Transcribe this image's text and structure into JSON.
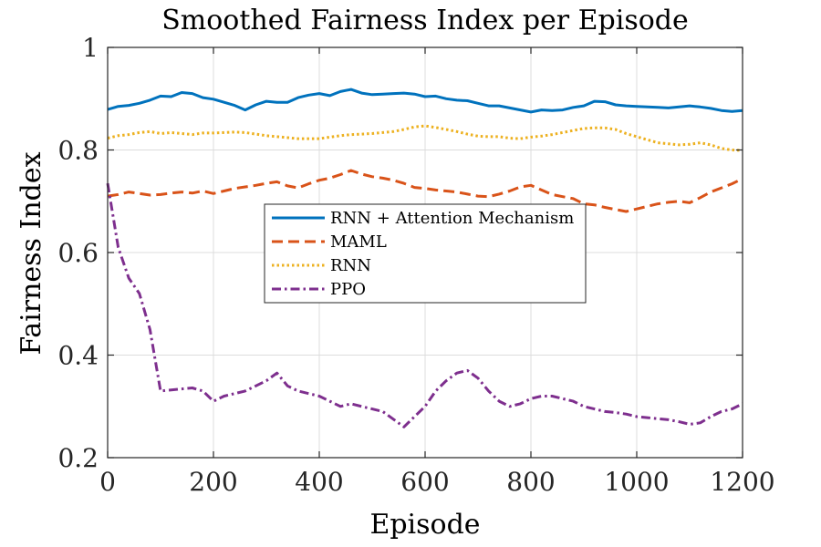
{
  "chart_data": {
    "type": "line",
    "title": "Smoothed Fairness Index per Episode",
    "xlabel": "Episode",
    "ylabel": "Fairness Index",
    "xlim": [
      0,
      1200
    ],
    "ylim": [
      0.2,
      1
    ],
    "xticks": [
      0,
      200,
      400,
      600,
      800,
      1000,
      1200
    ],
    "yticks": [
      0.2,
      0.4,
      0.6,
      0.8,
      1
    ],
    "xtick_labels": [
      "0",
      "200",
      "400",
      "600",
      "800",
      "1000",
      "1200"
    ],
    "ytick_labels": [
      "0.2",
      "0.4",
      "0.6",
      "0.8",
      "1"
    ],
    "grid": true,
    "legend_position": "center-left, middle",
    "series": [
      {
        "name": "RNN + Attention Mechanism",
        "color": "#0072BD",
        "dash": "solid",
        "x": [
          0,
          20,
          40,
          60,
          80,
          100,
          120,
          140,
          160,
          180,
          200,
          220,
          240,
          260,
          280,
          300,
          320,
          340,
          360,
          380,
          400,
          420,
          440,
          460,
          480,
          500,
          520,
          540,
          560,
          580,
          600,
          620,
          640,
          660,
          680,
          700,
          720,
          740,
          760,
          780,
          800,
          820,
          840,
          860,
          880,
          900,
          920,
          940,
          960,
          980,
          1000,
          1020,
          1040,
          1060,
          1080,
          1100,
          1120,
          1140,
          1160,
          1180,
          1200
        ],
        "y": [
          0.879,
          0.885,
          0.887,
          0.891,
          0.897,
          0.905,
          0.904,
          0.912,
          0.91,
          0.902,
          0.899,
          0.893,
          0.887,
          0.878,
          0.888,
          0.895,
          0.893,
          0.893,
          0.902,
          0.907,
          0.91,
          0.906,
          0.914,
          0.918,
          0.911,
          0.908,
          0.909,
          0.91,
          0.911,
          0.909,
          0.904,
          0.905,
          0.9,
          0.897,
          0.896,
          0.891,
          0.886,
          0.886,
          0.882,
          0.878,
          0.874,
          0.878,
          0.877,
          0.878,
          0.883,
          0.886,
          0.895,
          0.894,
          0.888,
          0.886,
          0.885,
          0.884,
          0.883,
          0.882,
          0.884,
          0.886,
          0.884,
          0.881,
          0.877,
          0.875,
          0.877
        ]
      },
      {
        "name": "MAML",
        "color": "#D95319",
        "dash": "dashed",
        "x": [
          0,
          20,
          40,
          60,
          80,
          100,
          120,
          140,
          160,
          180,
          200,
          220,
          240,
          260,
          280,
          300,
          320,
          340,
          360,
          380,
          400,
          420,
          440,
          460,
          480,
          500,
          520,
          540,
          560,
          580,
          600,
          620,
          640,
          660,
          680,
          700,
          720,
          740,
          760,
          780,
          800,
          820,
          840,
          860,
          880,
          900,
          920,
          940,
          960,
          980,
          1000,
          1020,
          1040,
          1060,
          1080,
          1100,
          1120,
          1140,
          1160,
          1180,
          1200
        ],
        "y": [
          0.71,
          0.713,
          0.718,
          0.715,
          0.712,
          0.713,
          0.716,
          0.718,
          0.716,
          0.72,
          0.715,
          0.72,
          0.725,
          0.728,
          0.731,
          0.735,
          0.738,
          0.73,
          0.726,
          0.734,
          0.741,
          0.745,
          0.752,
          0.76,
          0.753,
          0.748,
          0.745,
          0.741,
          0.735,
          0.727,
          0.725,
          0.722,
          0.72,
          0.718,
          0.714,
          0.71,
          0.709,
          0.714,
          0.72,
          0.728,
          0.731,
          0.722,
          0.713,
          0.709,
          0.705,
          0.695,
          0.693,
          0.688,
          0.684,
          0.68,
          0.685,
          0.69,
          0.695,
          0.698,
          0.7,
          0.697,
          0.707,
          0.718,
          0.726,
          0.734,
          0.744
        ]
      },
      {
        "name": "RNN",
        "color": "#EDB120",
        "dash": "dotted",
        "x": [
          0,
          20,
          40,
          60,
          80,
          100,
          120,
          140,
          160,
          180,
          200,
          220,
          240,
          260,
          280,
          300,
          320,
          340,
          360,
          380,
          400,
          420,
          440,
          460,
          480,
          500,
          520,
          540,
          560,
          580,
          600,
          620,
          640,
          660,
          680,
          700,
          720,
          740,
          760,
          780,
          800,
          820,
          840,
          860,
          880,
          900,
          920,
          940,
          960,
          980,
          1000,
          1020,
          1040,
          1060,
          1080,
          1100,
          1120,
          1140,
          1160,
          1180,
          1200
        ],
        "y": [
          0.823,
          0.828,
          0.83,
          0.834,
          0.836,
          0.832,
          0.834,
          0.832,
          0.83,
          0.833,
          0.833,
          0.834,
          0.835,
          0.834,
          0.831,
          0.828,
          0.826,
          0.824,
          0.822,
          0.822,
          0.822,
          0.825,
          0.828,
          0.83,
          0.831,
          0.832,
          0.834,
          0.836,
          0.84,
          0.845,
          0.847,
          0.844,
          0.84,
          0.836,
          0.831,
          0.827,
          0.826,
          0.826,
          0.823,
          0.822,
          0.825,
          0.827,
          0.83,
          0.834,
          0.838,
          0.842,
          0.843,
          0.843,
          0.84,
          0.832,
          0.826,
          0.82,
          0.814,
          0.812,
          0.81,
          0.811,
          0.814,
          0.81,
          0.803,
          0.8,
          0.799
        ]
      },
      {
        "name": "PPO",
        "color": "#7E2F8E",
        "dash": "dashdot",
        "x": [
          0,
          20,
          40,
          60,
          80,
          100,
          120,
          140,
          160,
          180,
          200,
          220,
          240,
          260,
          280,
          300,
          320,
          340,
          360,
          380,
          400,
          420,
          440,
          460,
          480,
          500,
          520,
          540,
          560,
          580,
          600,
          620,
          640,
          660,
          680,
          700,
          720,
          740,
          760,
          780,
          800,
          820,
          840,
          860,
          880,
          900,
          920,
          940,
          960,
          980,
          1000,
          1020,
          1040,
          1060,
          1080,
          1100,
          1120,
          1140,
          1160,
          1180,
          1200
        ],
        "y": [
          0.735,
          0.61,
          0.55,
          0.52,
          0.45,
          0.33,
          0.332,
          0.334,
          0.336,
          0.33,
          0.31,
          0.32,
          0.325,
          0.33,
          0.34,
          0.35,
          0.365,
          0.34,
          0.33,
          0.325,
          0.32,
          0.31,
          0.3,
          0.305,
          0.3,
          0.295,
          0.29,
          0.275,
          0.26,
          0.28,
          0.3,
          0.33,
          0.35,
          0.365,
          0.37,
          0.355,
          0.33,
          0.31,
          0.3,
          0.305,
          0.315,
          0.32,
          0.32,
          0.315,
          0.31,
          0.3,
          0.295,
          0.29,
          0.288,
          0.285,
          0.28,
          0.278,
          0.276,
          0.274,
          0.27,
          0.265,
          0.268,
          0.28,
          0.29,
          0.295,
          0.305
        ]
      }
    ]
  }
}
